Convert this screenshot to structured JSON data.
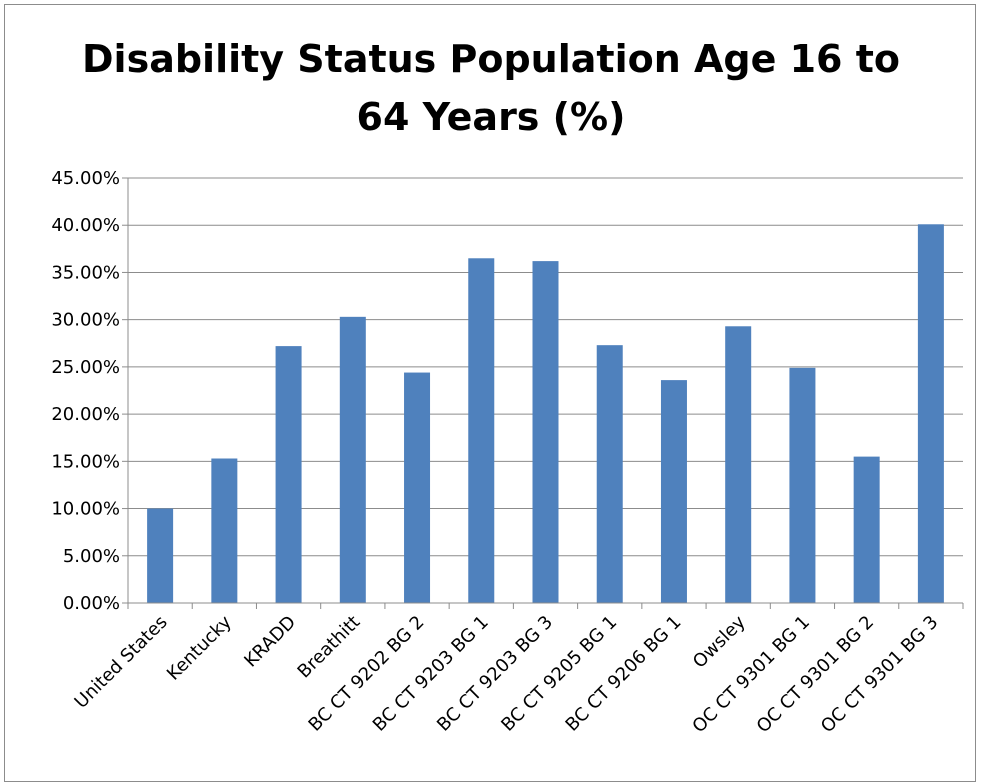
{
  "chart_data": {
    "type": "bar",
    "title_lines": [
      "Disability Status Population Age 16 to",
      "64 Years (%)"
    ],
    "categories": [
      "United States",
      "Kentucky",
      "KRADD",
      "Breathitt",
      "BC CT 9202 BG 2",
      "BC CT 9203 BG 1",
      "BC CT 9203 BG 3",
      "BC CT 9205 BG 1",
      "BC CT 9206 BG 1",
      "Owsley",
      "OC CT 9301 BG 1",
      "OC CT 9301 BG 2",
      "OC CT 9301 BG 3"
    ],
    "values": [
      10.0,
      15.3,
      27.2,
      30.3,
      24.4,
      36.5,
      36.2,
      27.3,
      23.6,
      29.3,
      24.9,
      15.5,
      40.1
    ],
    "y_ticks": [
      "0.00%",
      "5.00%",
      "10.00%",
      "15.00%",
      "20.00%",
      "25.00%",
      "30.00%",
      "35.00%",
      "40.00%",
      "45.00%"
    ],
    "ylim": [
      0,
      45
    ],
    "xlabel": "",
    "ylabel": "",
    "grid": true,
    "legend": "none",
    "bar_color": "#4f81bd"
  }
}
